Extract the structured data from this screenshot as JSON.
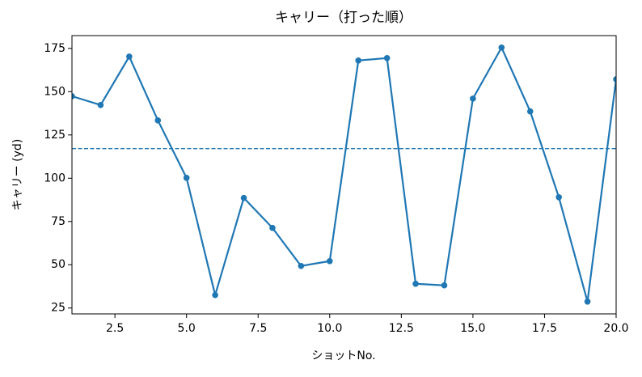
{
  "chart_data": {
    "type": "line",
    "title": "キャリー（打った順）",
    "x_label": "ショットNo.",
    "y_label": "キャリー (yd)",
    "x": [
      1,
      2,
      3,
      4,
      5,
      6,
      7,
      8,
      9,
      10,
      11,
      12,
      13,
      14,
      15,
      16,
      17,
      18,
      19,
      20
    ],
    "series": [
      {
        "name": "キャリー",
        "color": "#1f77b4",
        "values": [
          147.4,
          142.3,
          170.3,
          133.4,
          100.2,
          32.5,
          88.6,
          71.3,
          49.3,
          52.1,
          168,
          169.4,
          39,
          38.1,
          146,
          175.5,
          138.6,
          89,
          28.7,
          157.2
        ]
      }
    ],
    "reference_line": 117.1,
    "xlim": [
      1,
      20
    ],
    "xticks": [
      2.5,
      {
        "value": 5,
        "label": "5.0"
      },
      7.5,
      {
        "value": 10,
        "label": "10.0"
      },
      12.5,
      {
        "value": 15,
        "label": "15.0"
      },
      17.5,
      {
        "value": 20,
        "label": "20.0"
      }
    ],
    "ylim": [
      21.6,
      182.4
    ],
    "yticks": [
      25,
      50,
      75,
      100,
      125,
      150,
      175
    ],
    "grid": false
  }
}
